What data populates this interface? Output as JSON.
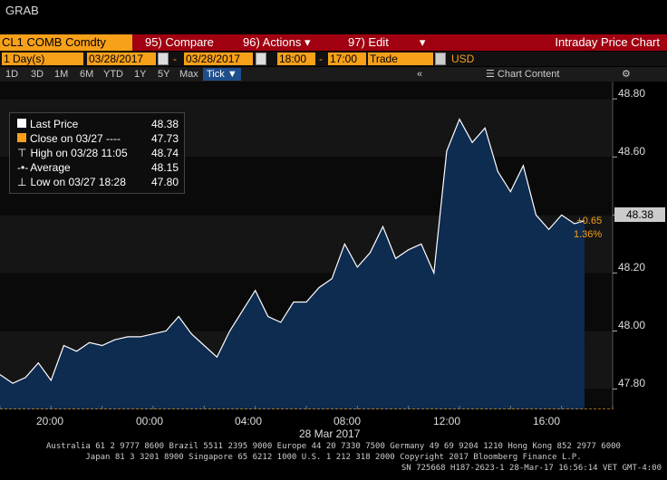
{
  "app": {
    "function_name": "GRAB"
  },
  "toolbar": {
    "ticker": "CL1 COMB Comdty",
    "compare": "95) Compare",
    "actions": "96) Actions",
    "edit": "97) Edit",
    "title": "Intraday Price Chart"
  },
  "range": {
    "period": "1 Day(s)",
    "start_date": "03/28/2017",
    "end_date": "03/28/2017",
    "start_time": "18:00",
    "end_time": "17:00",
    "market": "Trade",
    "currency": "USD"
  },
  "periods": [
    "1D",
    "3D",
    "1M",
    "6M",
    "YTD",
    "1Y",
    "5Y",
    "Max"
  ],
  "tick_button": "Tick",
  "collapse_glyph": "«",
  "chart_content": "Chart Content",
  "legend": [
    {
      "label": "Last Price",
      "value": "48.38"
    },
    {
      "label": "Close on 03/27 ----",
      "value": "47.73"
    },
    {
      "label": "High on 03/28 11:05",
      "value": "48.74"
    },
    {
      "label": "Average",
      "value": "48.15"
    },
    {
      "label": "Low on 03/27 18:28",
      "value": "47.80"
    }
  ],
  "last_badge": "48.38",
  "change": {
    "abs": "+0.65",
    "pct": "1.36%"
  },
  "colors": {
    "accent": "#f7a01a",
    "toolbar": "#a00010",
    "area": "#0e2b50",
    "line": "#ffffff"
  },
  "chart_data": {
    "type": "area",
    "title": "Intraday Price Chart",
    "ylim": [
      47.73,
      48.86
    ],
    "yticks": [
      47.8,
      48.0,
      48.2,
      48.4,
      48.6,
      48.8
    ],
    "ytick_labels": [
      "47.80",
      "48.00",
      "48.20",
      "48.40",
      "48.60",
      "48.80"
    ],
    "xticks": [
      "20:00",
      "00:00",
      "04:00",
      "08:00",
      "12:00",
      "16:00"
    ],
    "x_hours": [
      0,
      2,
      4,
      6,
      8,
      10,
      12,
      14,
      16,
      18,
      20,
      22,
      24
    ],
    "date_label": "28 Mar 2017",
    "reference_close": 47.73,
    "series": [
      {
        "name": "Last Price",
        "x": [
          0.0,
          0.5,
          1.0,
          1.5,
          2.0,
          2.5,
          3.0,
          3.5,
          4.0,
          4.5,
          5.0,
          5.5,
          6.0,
          6.5,
          7.0,
          7.5,
          8.0,
          8.5,
          9.0,
          9.5,
          10.0,
          10.5,
          11.0,
          11.5,
          12.0,
          12.5,
          13.0,
          13.5,
          14.0,
          14.5,
          15.0,
          15.5,
          16.0,
          16.5,
          17.0,
          17.5,
          18.0,
          18.5,
          19.0,
          19.5,
          20.0,
          20.5,
          21.0,
          21.5,
          22.0,
          22.5,
          22.9
        ],
        "y": [
          47.85,
          47.82,
          47.84,
          47.89,
          47.83,
          47.95,
          47.93,
          47.96,
          47.95,
          47.97,
          47.98,
          47.98,
          47.99,
          48.0,
          48.05,
          47.99,
          47.95,
          47.91,
          48.0,
          48.07,
          48.14,
          48.05,
          48.03,
          48.1,
          48.1,
          48.15,
          48.18,
          48.3,
          48.22,
          48.27,
          48.36,
          48.25,
          48.28,
          48.3,
          48.2,
          48.62,
          48.73,
          48.65,
          48.7,
          48.55,
          48.48,
          48.57,
          48.4,
          48.35,
          48.4,
          48.37,
          48.38
        ]
      }
    ]
  },
  "footer": {
    "line1": "Australia 61 2 9777 8600 Brazil 5511 2395 9000 Europe 44 20 7330 7500 Germany 49 69 9204 1210 Hong Kong 852 2977 6000",
    "line2": "Japan 81 3 3201 8900 Singapore 65 6212 1000 U.S. 1 212 318 2000 Copyright 2017 Bloomberg Finance L.P.",
    "line3": "SN 725668 H187-2623-1 28-Mar-17 16:56:14 VET GMT-4:00"
  }
}
